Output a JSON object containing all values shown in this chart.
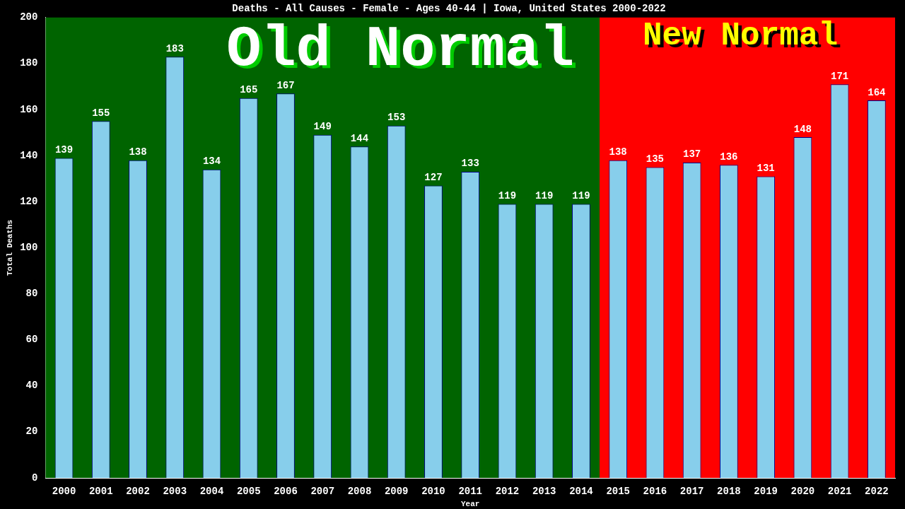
{
  "chart_data": {
    "type": "bar",
    "title": "Deaths - All Causes - Female - Ages 40-44 | Iowa, United States 2000-2022",
    "xlabel": "Year",
    "ylabel": "Total Deaths",
    "categories": [
      "2000",
      "2001",
      "2002",
      "2003",
      "2004",
      "2005",
      "2006",
      "2007",
      "2008",
      "2009",
      "2010",
      "2011",
      "2012",
      "2013",
      "2014",
      "2015",
      "2016",
      "2017",
      "2018",
      "2019",
      "2020",
      "2021",
      "2022"
    ],
    "values": [
      139,
      155,
      138,
      183,
      134,
      165,
      167,
      149,
      144,
      153,
      127,
      133,
      119,
      119,
      119,
      138,
      135,
      137,
      136,
      131,
      148,
      171,
      164
    ],
    "color": "#87ceeb",
    "data_labels": true,
    "ylim": [
      0,
      200
    ],
    "yticks": [
      0,
      20,
      40,
      60,
      80,
      100,
      120,
      140,
      160,
      180,
      200
    ],
    "grid": false,
    "legend": false,
    "bands": [
      {
        "axis": "x",
        "from": "2000",
        "to": "2014",
        "label": "Old Normal",
        "color": "#006400"
      },
      {
        "axis": "x",
        "from": "2015",
        "to": "2022",
        "label": "New Normal",
        "color": "#ff0000"
      }
    ]
  }
}
